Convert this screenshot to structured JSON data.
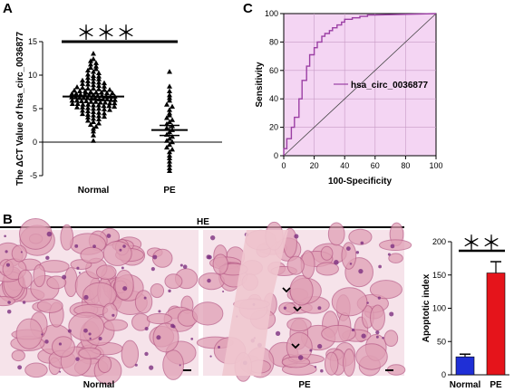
{
  "panels": {
    "a": "A",
    "b": "B",
    "c": "C"
  },
  "figure_b": {
    "stain_label": "HE",
    "image_left_label": "Normal",
    "image_right_label": "PE"
  },
  "colors": {
    "roc_fill": "#f4d5f3",
    "roc_line": "#9b3fa4",
    "normal_bar": "#1f2fd6",
    "pe_bar": "#e5141b",
    "tissue_bg": "#f6e3ea",
    "tissue_pink": "#e0a0b5",
    "tissue_stain": "#7d2f7f"
  },
  "chart_data": [
    {
      "id": "A",
      "type": "scatter",
      "ylabel": "The  ΔCT Value  of  hsa_circ_0036877",
      "categories": [
        "Normal",
        "PE"
      ],
      "ylim": [
        -5,
        15
      ],
      "yticks": [
        -5,
        0,
        5,
        10,
        15
      ],
      "significance": "＊＊＊",
      "summary": [
        {
          "category": "Normal",
          "mean": 6.8,
          "sem_low": 6.4,
          "sem_high": 7.2
        },
        {
          "category": "PE",
          "mean": 1.8,
          "sem_low": 1.0,
          "sem_high": 2.5
        }
      ],
      "series": [
        {
          "category": "Normal",
          "values": [
            13.2,
            12.4,
            12.1,
            11.8,
            11.6,
            11.3,
            11.1,
            10.9,
            10.7,
            10.5,
            10.3,
            10.1,
            9.9,
            9.8,
            9.6,
            9.5,
            9.4,
            9.2,
            9.1,
            9.0,
            8.9,
            8.8,
            8.7,
            8.6,
            8.5,
            8.4,
            8.3,
            8.2,
            8.1,
            8.0,
            8.0,
            7.9,
            7.8,
            7.8,
            7.7,
            7.6,
            7.6,
            7.5,
            7.4,
            7.4,
            7.3,
            7.3,
            7.2,
            7.2,
            7.1,
            7.1,
            7.0,
            7.0,
            6.9,
            6.9,
            6.8,
            6.8,
            6.8,
            6.7,
            6.7,
            6.6,
            6.6,
            6.6,
            6.5,
            6.5,
            6.4,
            6.4,
            6.4,
            6.3,
            6.3,
            6.2,
            6.2,
            6.1,
            6.1,
            6.0,
            6.0,
            5.9,
            5.9,
            5.8,
            5.8,
            5.7,
            5.7,
            5.6,
            5.6,
            5.5,
            5.5,
            5.4,
            5.4,
            5.3,
            5.2,
            5.2,
            5.1,
            5.0,
            5.0,
            4.9,
            4.8,
            4.7,
            4.6,
            4.5,
            4.4,
            4.3,
            4.2,
            4.1,
            4.0,
            3.9,
            3.8,
            3.7,
            3.5,
            3.4,
            3.2,
            3.0,
            2.8,
            2.6,
            2.3,
            2.0,
            1.6,
            1.0,
            0.2
          ]
        },
        {
          "category": "PE",
          "values": [
            10.5,
            8.3,
            7.6,
            7.0,
            6.6,
            6.2,
            5.6,
            5.3,
            4.8,
            4.3,
            4.0,
            3.6,
            3.3,
            3.0,
            2.7,
            2.4,
            2.1,
            1.8,
            1.5,
            1.1,
            0.8,
            0.5,
            0.2,
            0.0,
            -0.4,
            -0.8,
            -1.1,
            -1.5,
            -2.0,
            -2.4,
            -2.9,
            -3.4,
            -3.9,
            -4.3
          ]
        }
      ]
    },
    {
      "id": "C",
      "type": "line",
      "xlabel": "100-Specificity",
      "ylabel": "Sensitivity",
      "xlim": [
        0,
        100
      ],
      "ylim": [
        0,
        100
      ],
      "xticks": [
        0,
        20,
        40,
        60,
        80,
        100
      ],
      "yticks": [
        0,
        20,
        40,
        60,
        80,
        100
      ],
      "legend": "hsa_circ_0036877",
      "series": [
        {
          "name": "hsa_circ_0036877",
          "x": [
            0,
            0,
            2,
            2,
            5,
            5,
            7,
            7,
            10,
            10,
            12,
            12,
            15,
            15,
            17,
            17,
            20,
            20,
            22,
            22,
            25,
            25,
            27,
            27,
            30,
            30,
            32,
            32,
            35,
            35,
            38,
            38,
            40,
            40,
            45,
            45,
            50,
            50,
            55,
            55,
            60,
            100
          ],
          "y": [
            0,
            5,
            5,
            12,
            12,
            20,
            20,
            27,
            27,
            40,
            40,
            53,
            53,
            63,
            63,
            71,
            71,
            76,
            76,
            80,
            80,
            84,
            84,
            86,
            86,
            88,
            88,
            90,
            90,
            92,
            92,
            94,
            94,
            96,
            96,
            97,
            97,
            98,
            98,
            99,
            99,
            100
          ]
        }
      ],
      "reference_line": {
        "x": [
          0,
          100
        ],
        "y": [
          0,
          100
        ]
      }
    },
    {
      "id": "B-right",
      "type": "bar",
      "ylabel": "Apoptotic index",
      "categories": [
        "Normal",
        "PE"
      ],
      "values": [
        27,
        153
      ],
      "errors": [
        4,
        17
      ],
      "ylim": [
        0,
        200
      ],
      "yticks": [
        0,
        50,
        100,
        150,
        200
      ],
      "significance": "＊＊"
    }
  ]
}
